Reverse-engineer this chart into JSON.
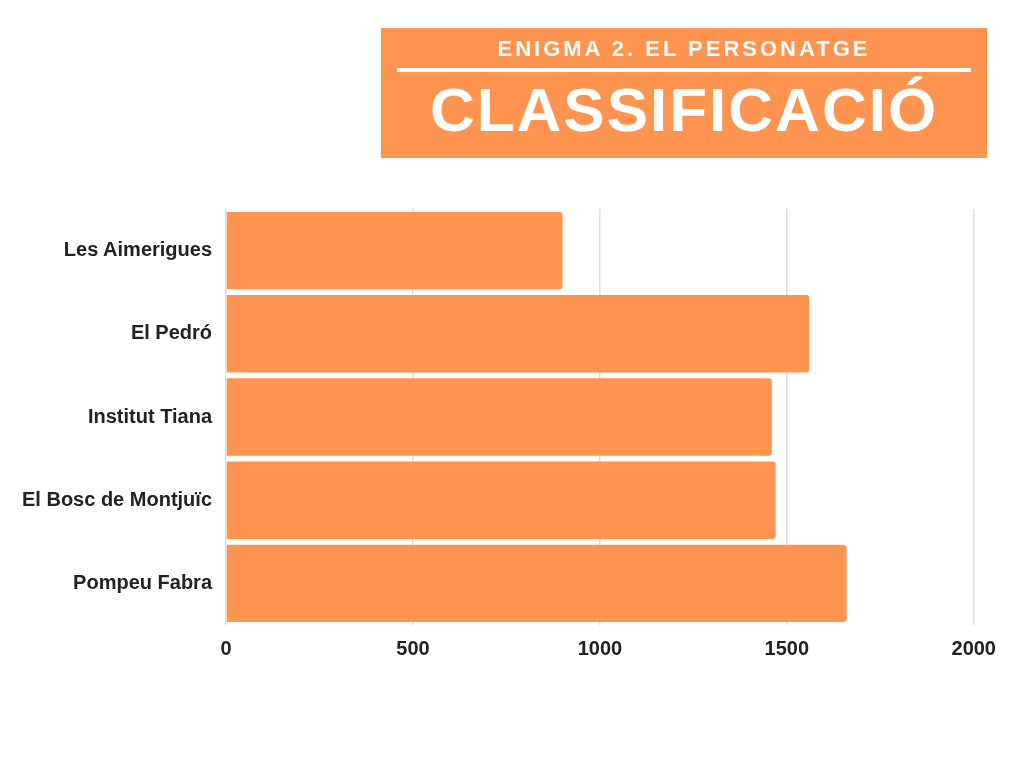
{
  "chart_data": {
    "type": "bar",
    "orientation": "horizontal",
    "title": "CLASSIFICACIÓ",
    "subtitle": "ENIGMA 2. EL PERSONATGE",
    "categories": [
      "Les Aimerigues",
      "El Pedró",
      "Institut Tiana",
      "El Bosc de Montjuïc",
      "Pompeu Fabra"
    ],
    "values": [
      900,
      1560,
      1460,
      1470,
      1660
    ],
    "color": "#ff9350",
    "xlim": [
      0,
      2000
    ],
    "xticks": [
      0,
      500,
      1000,
      1500,
      2000
    ],
    "grid": "x",
    "legend": false
  }
}
